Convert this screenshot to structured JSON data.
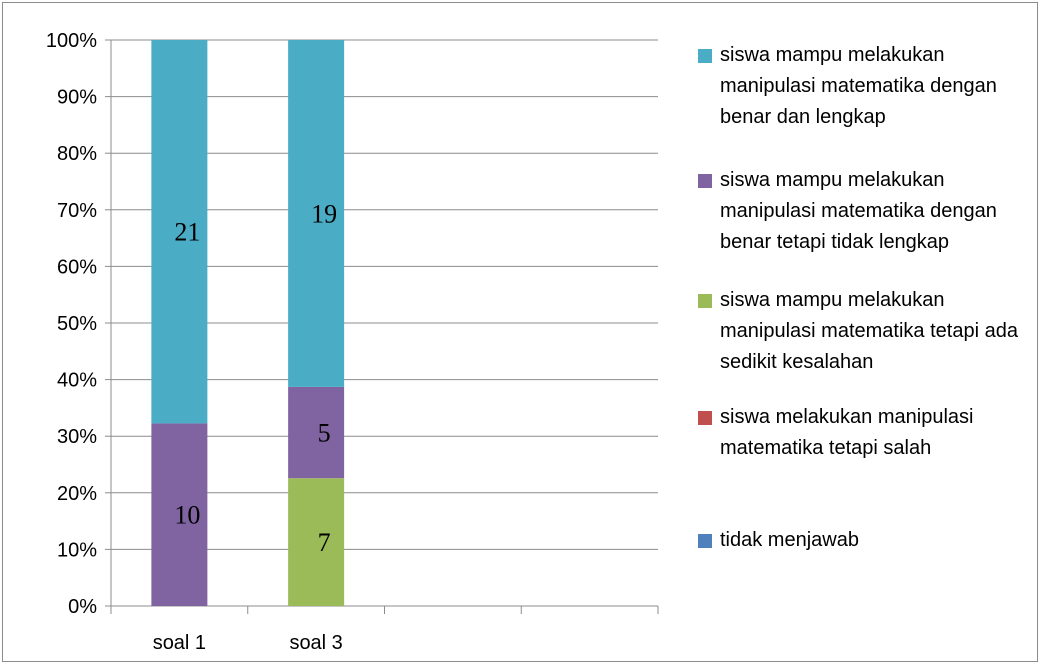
{
  "chart_data": {
    "type": "bar",
    "stacked": true,
    "percent_stacked": true,
    "categories": [
      "soal 1",
      "soal 3"
    ],
    "y_ticks": [
      "0%",
      "10%",
      "20%",
      "30%",
      "40%",
      "50%",
      "60%",
      "70%",
      "80%",
      "90%",
      "100%"
    ],
    "ylim": [
      0,
      100
    ],
    "grid": true,
    "legend_position": "right",
    "series": [
      {
        "name": "tidak menjawab",
        "color": "#4F81BD",
        "values": [
          0,
          0
        ]
      },
      {
        "name": "siswa melakukan manipulasi matematika tetapi salah",
        "color": "#C0504D",
        "values": [
          0,
          0
        ]
      },
      {
        "name": "siswa mampu melakukan manipulasi matematika tetapi ada sedikit kesalahan",
        "color": "#9BBB59",
        "values": [
          0,
          7
        ]
      },
      {
        "name": "siswa mampu melakukan manipulasi matematika dengan benar tetapi tidak lengkap",
        "color": "#8064A2",
        "values": [
          10,
          5
        ]
      },
      {
        "name": "siswa mampu melakukan manipulasi matematika dengan benar dan lengkap",
        "color": "#4BACC6",
        "values": [
          21,
          19
        ]
      }
    ],
    "legend_order": [
      4,
      3,
      2,
      1,
      0
    ]
  }
}
